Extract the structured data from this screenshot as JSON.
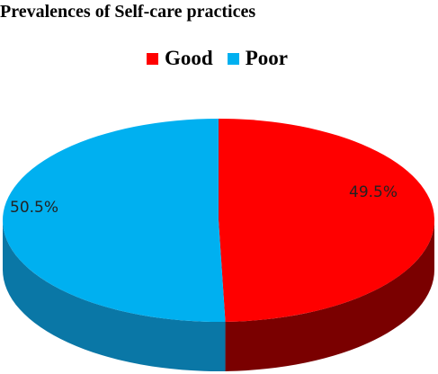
{
  "chart_data": {
    "type": "pie",
    "title": "Prevalences of Self-care practices",
    "categories": [
      "Good",
      "Poor"
    ],
    "values": [
      49.5,
      50.5
    ],
    "labels": [
      "49.5%",
      "50.5%"
    ],
    "colors": {
      "Good": "#ff0000",
      "Poor": "#00b0f0"
    },
    "side_colors": {
      "Good": "#7a0000",
      "Poor": "#0a77a6"
    },
    "legend_position": "top",
    "style": "3d"
  }
}
